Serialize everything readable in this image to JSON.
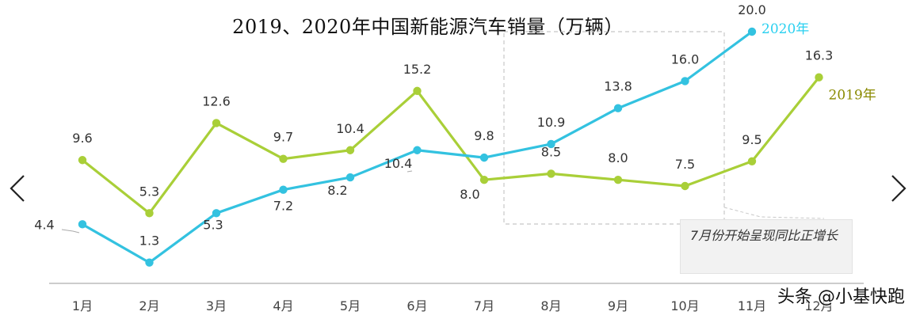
{
  "page": {
    "title": "2019、2020年中国新能源汽车销量（万辆）"
  },
  "annotation": {
    "text": "7月份开始呈现同比正增长"
  },
  "watermark": {
    "text": "头条 @小基快跑"
  },
  "nav": {
    "prev_icon": "chevron-left-icon",
    "next_icon": "chevron-right-icon"
  },
  "colors": {
    "series_2019": "#a9cf38",
    "series_2020": "#33c2e0",
    "label_2019": "#8a8a00",
    "label_2020": "#2ad0f0",
    "axis": "#bbbbbb",
    "value_label": "#333333"
  },
  "chart_data": {
    "type": "line",
    "title": "2019、2020年中国新能源汽车销量（万辆）",
    "categories": [
      "1月",
      "2月",
      "3月",
      "4月",
      "5月",
      "6月",
      "7月",
      "8月",
      "9月",
      "10月",
      "11月",
      "12月"
    ],
    "series": [
      {
        "name": "2019年",
        "values": [
          9.6,
          5.3,
          12.6,
          9.7,
          10.4,
          15.2,
          8.0,
          8.5,
          8.0,
          7.5,
          9.5,
          16.3
        ]
      },
      {
        "name": "2020年",
        "values": [
          4.4,
          1.3,
          5.3,
          7.2,
          8.2,
          10.4,
          9.8,
          10.9,
          13.8,
          16.0,
          20.0,
          null
        ]
      }
    ],
    "highlight_range": [
      "8月",
      "11月"
    ],
    "xlabel": "",
    "ylabel": "",
    "grid": false,
    "legend": "inline labels at line ends"
  }
}
